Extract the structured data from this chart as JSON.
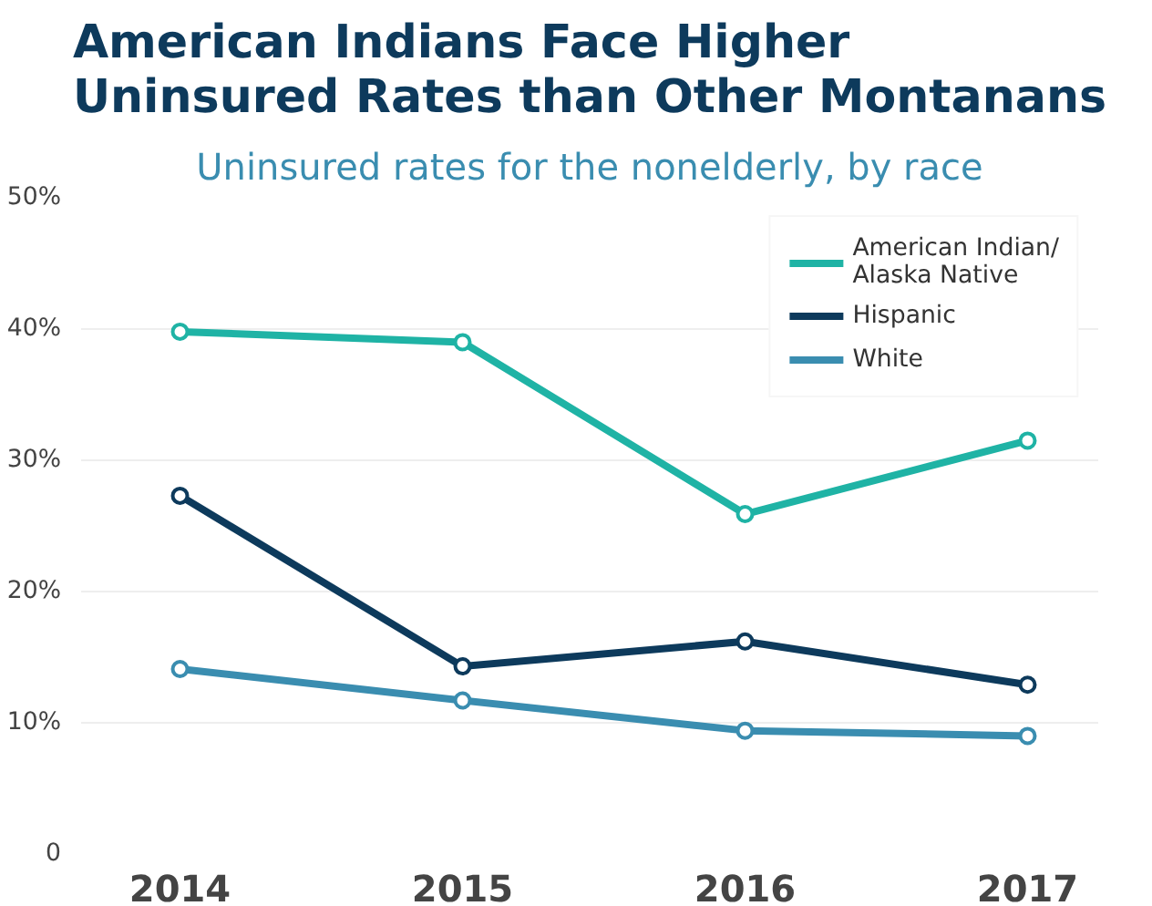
{
  "chart_data": {
    "type": "line",
    "title": "American Indians Face Higher\nUninsured Rates than Other Montanans",
    "subtitle": "Uninsured rates for the nonelderly, by race",
    "categories": [
      "2014",
      "2015",
      "2016",
      "2017"
    ],
    "series": [
      {
        "name": "American Indian/\nAlaska Native",
        "color": "#1fb3a5",
        "values": [
          39.8,
          39.0,
          25.9,
          31.5
        ]
      },
      {
        "name": "Hispanic",
        "color": "#0d3a5c",
        "values": [
          27.3,
          14.3,
          16.2,
          12.9
        ]
      },
      {
        "name": "White",
        "color": "#3a8db0",
        "values": [
          14.1,
          11.7,
          9.4,
          9.0
        ]
      }
    ],
    "ylim": [
      0,
      50
    ],
    "yticks": [
      {
        "value": 0,
        "label": "0"
      },
      {
        "value": 10,
        "label": "10%"
      },
      {
        "value": 20,
        "label": "20%"
      },
      {
        "value": 30,
        "label": "30%"
      },
      {
        "value": 40,
        "label": "40%"
      },
      {
        "value": 50,
        "label": "50%"
      }
    ],
    "grid": "y",
    "legend": "top right",
    "marker": "circle",
    "line_style": "solid"
  }
}
